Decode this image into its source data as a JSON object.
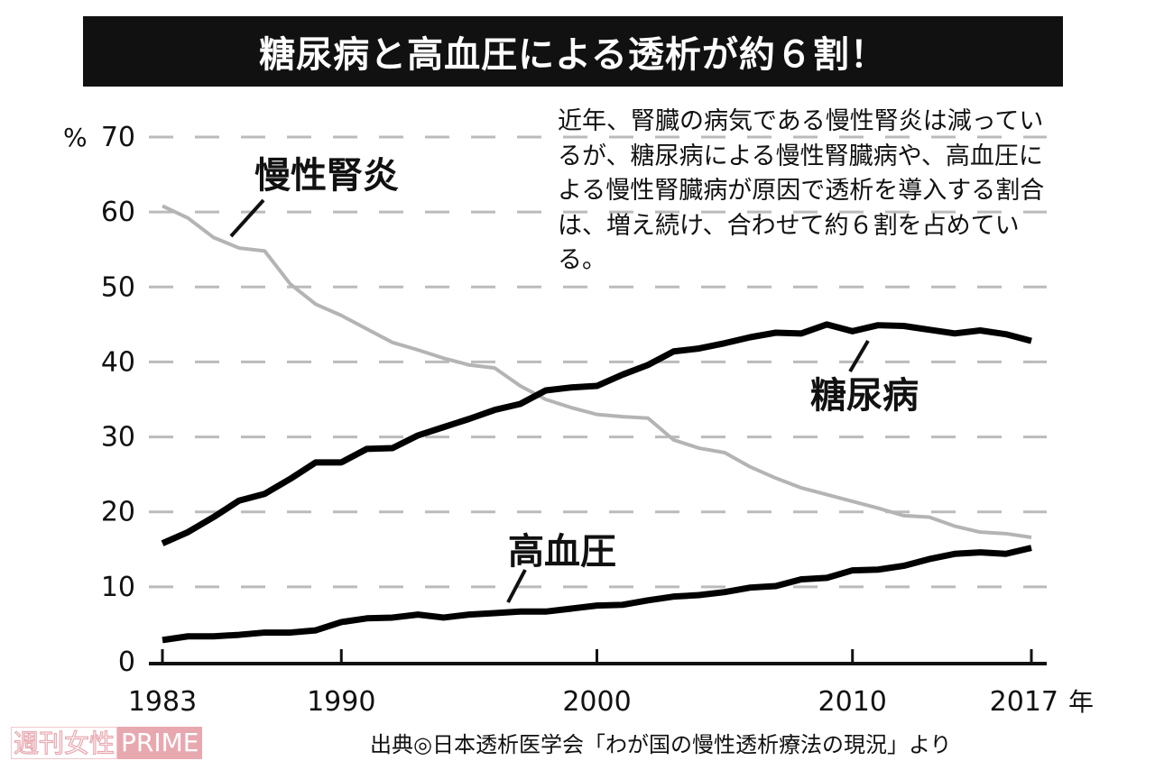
{
  "title": "糖尿病と高血圧による透析が約６割！",
  "note": "近年、腎臓の病気である慢性腎炎は減っているが、糖尿病による慢性腎臓病や、高血圧による慢性腎臓病が原因で透析を導入する割合は、増え続け、合わせて約６割を占めている。",
  "source": "出典◎日本透析医学会「わが国の慢性透析療法の現況」より",
  "watermark": {
    "part1": "週刊女性",
    "part2": "PRIME"
  },
  "chart_data": {
    "type": "line",
    "ylabel": "%",
    "xlabel": "年",
    "ylim": [
      0,
      70
    ],
    "xlim": [
      1983,
      2017
    ],
    "yticks": [
      0,
      10,
      20,
      30,
      40,
      50,
      60,
      70
    ],
    "xticks": [
      1983,
      1990,
      2000,
      2010,
      2017
    ],
    "grid": "horizontal dashed",
    "x": [
      1983,
      1984,
      1985,
      1986,
      1987,
      1988,
      1989,
      1990,
      1991,
      1992,
      1993,
      1994,
      1995,
      1996,
      1997,
      1998,
      1999,
      2000,
      2001,
      2002,
      2003,
      2004,
      2005,
      2006,
      2007,
      2008,
      2009,
      2010,
      2011,
      2012,
      2013,
      2014,
      2015,
      2016,
      2017
    ],
    "series": [
      {
        "name": "慢性腎炎",
        "color": "#b4b4b4",
        "values": [
          60.8,
          59.2,
          56.6,
          55.2,
          54.8,
          50.4,
          47.7,
          46.2,
          44.4,
          42.6,
          41.6,
          40.5,
          39.6,
          39.2,
          36.8,
          35.0,
          33.9,
          33.0,
          32.7,
          32.5,
          29.6,
          28.5,
          27.9,
          26.0,
          24.5,
          23.2,
          22.3,
          21.4,
          20.5,
          19.5,
          19.3,
          18.1,
          17.3,
          17.1,
          16.6
        ]
      },
      {
        "name": "糖尿病",
        "color": "#000000",
        "values": [
          15.8,
          17.3,
          19.3,
          21.5,
          22.4,
          24.4,
          26.6,
          26.6,
          28.4,
          28.5,
          30.2,
          31.3,
          32.4,
          33.6,
          34.4,
          36.2,
          36.6,
          36.8,
          38.3,
          39.6,
          41.4,
          41.8,
          42.5,
          43.3,
          43.9,
          43.8,
          45.0,
          44.1,
          44.9,
          44.8,
          44.3,
          43.8,
          44.2,
          43.7,
          42.8
        ]
      },
      {
        "name": "高血圧",
        "color": "#000000",
        "values": [
          2.9,
          3.4,
          3.4,
          3.6,
          3.9,
          3.9,
          4.2,
          5.3,
          5.8,
          5.9,
          6.3,
          5.9,
          6.3,
          6.5,
          6.7,
          6.7,
          7.1,
          7.5,
          7.6,
          8.2,
          8.7,
          8.9,
          9.3,
          9.9,
          10.1,
          11.0,
          11.2,
          12.2,
          12.3,
          12.8,
          13.7,
          14.4,
          14.6,
          14.4,
          15.2
        ]
      }
    ]
  }
}
